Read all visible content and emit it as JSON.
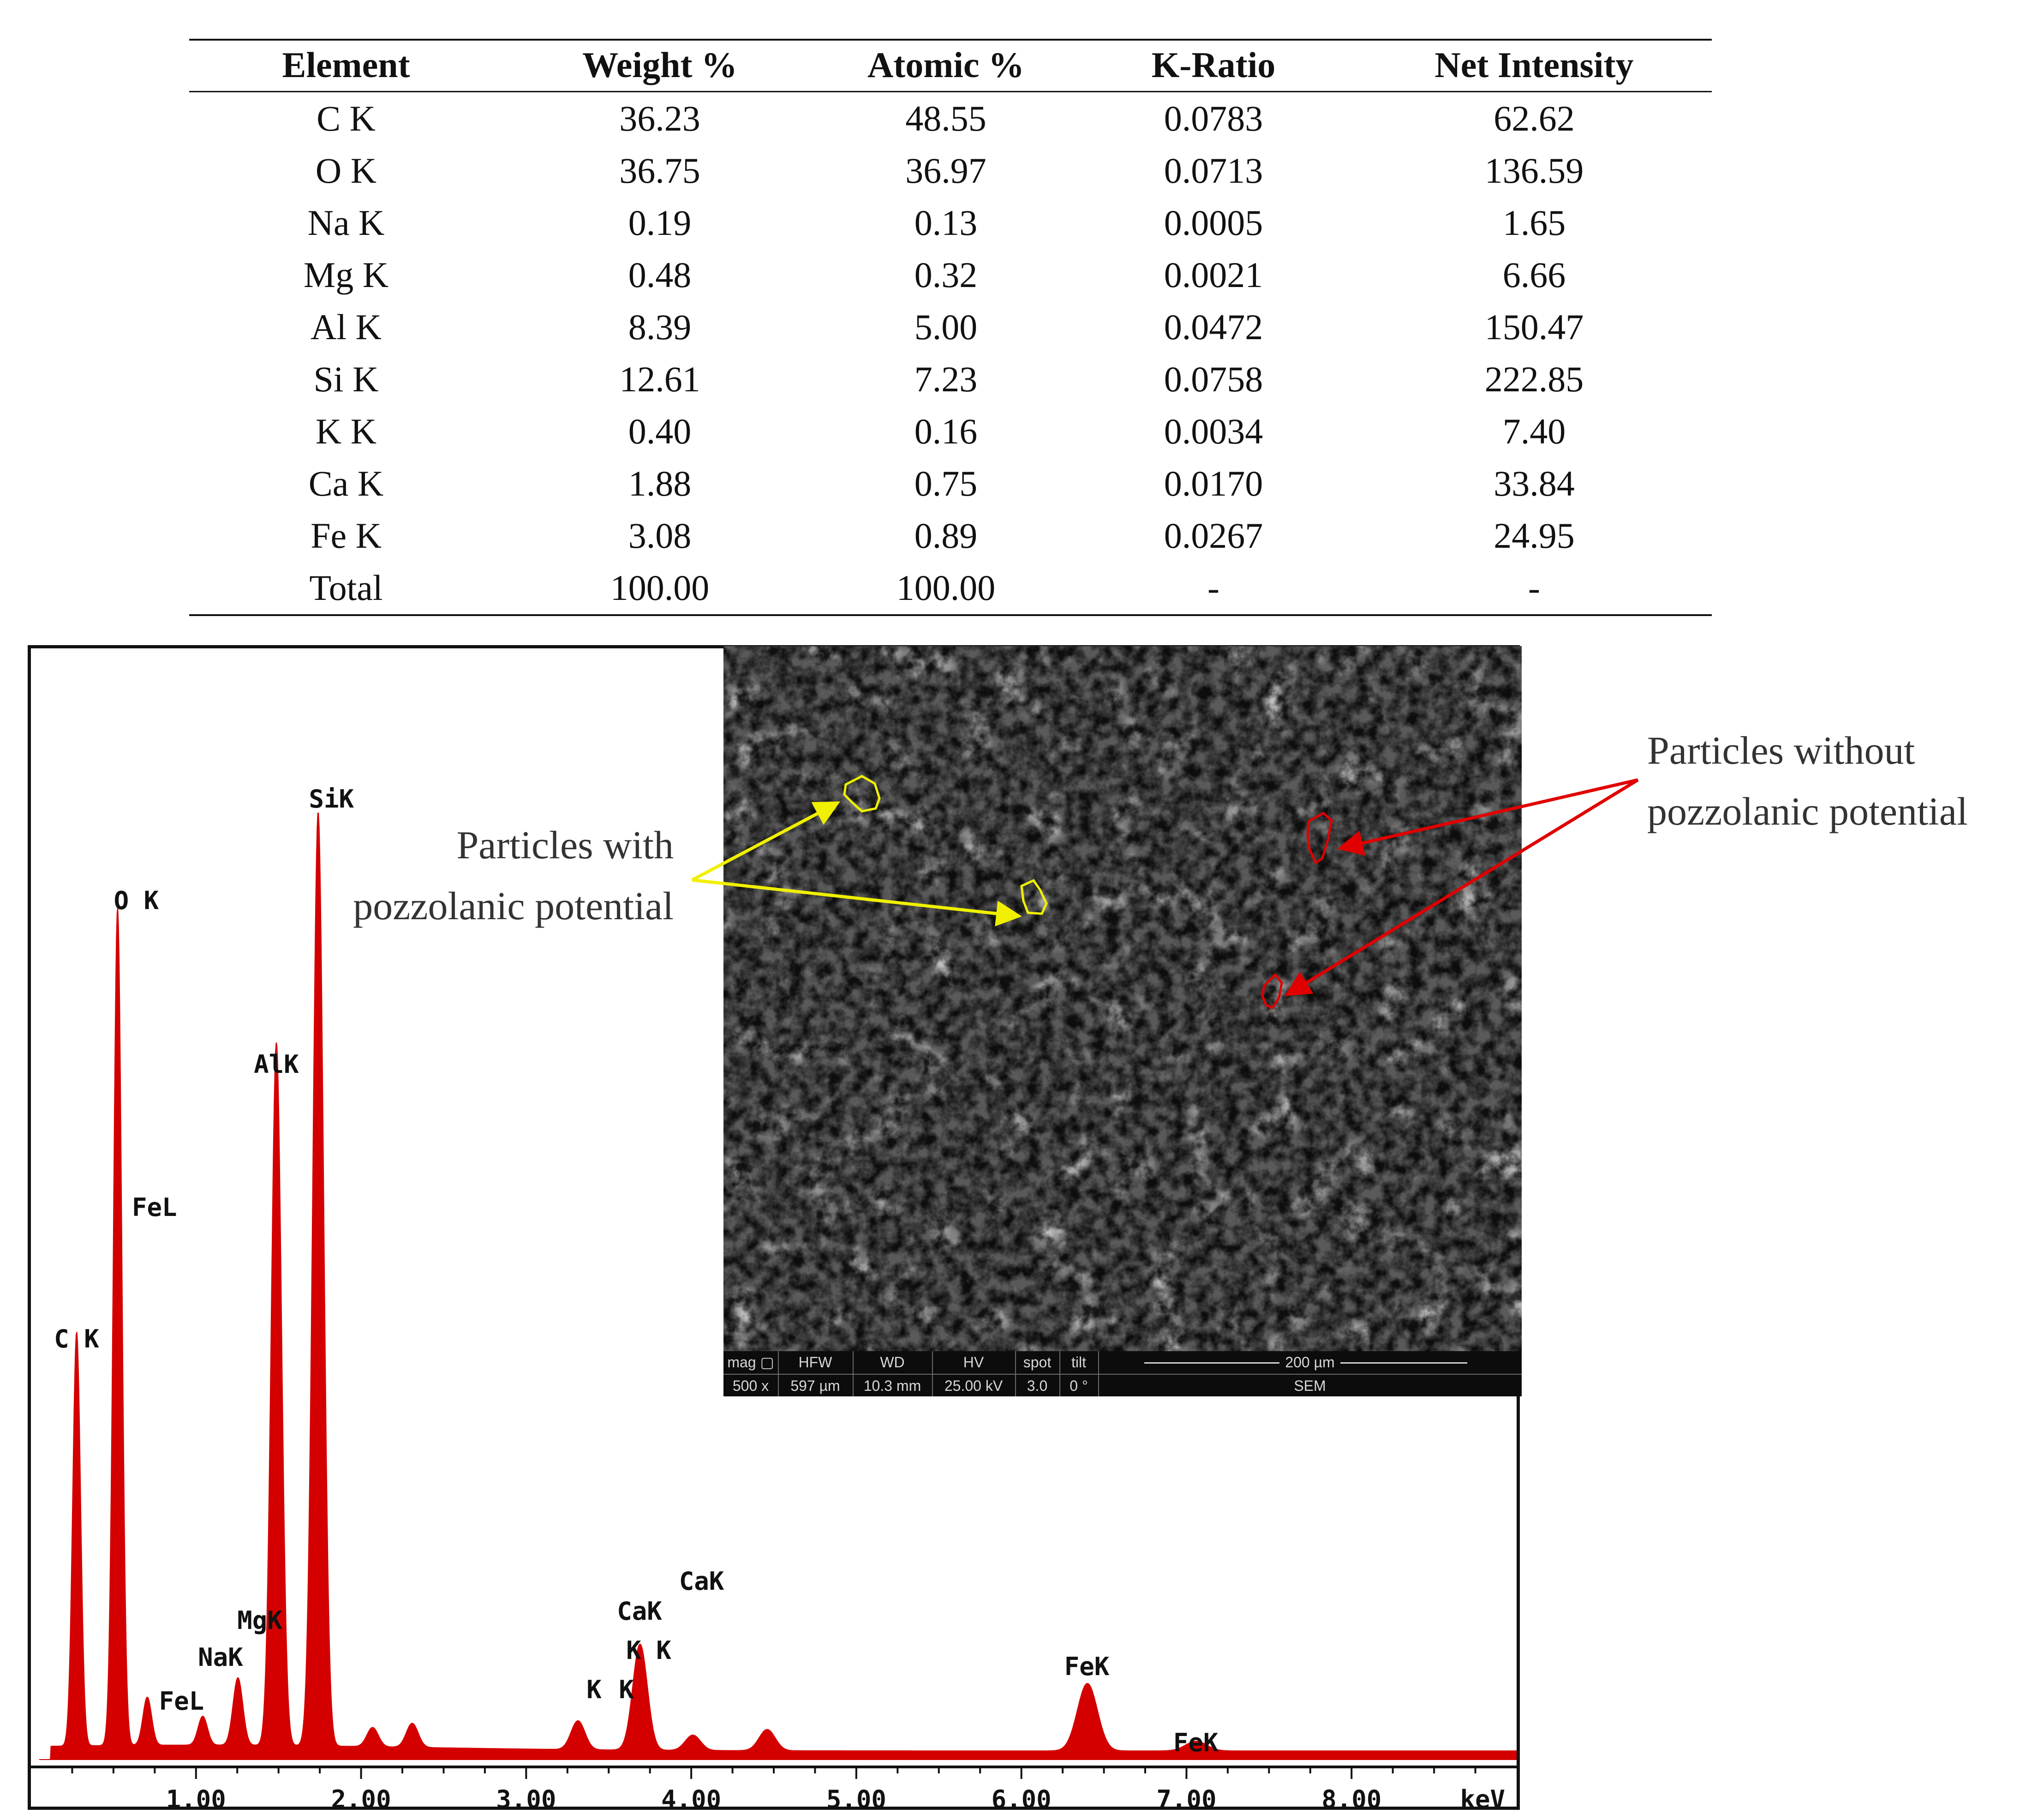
{
  "table": {
    "headers": [
      "Element",
      "Weight %",
      "Atomic %",
      "K-Ratio",
      "Net Intensity"
    ],
    "rows": [
      [
        "C K",
        "36.23",
        "48.55",
        "0.0783",
        "62.62"
      ],
      [
        "O K",
        "36.75",
        "36.97",
        "0.0713",
        "136.59"
      ],
      [
        "Na K",
        "0.19",
        "0.13",
        "0.0005",
        "1.65"
      ],
      [
        "Mg K",
        "0.48",
        "0.32",
        "0.0021",
        "6.66"
      ],
      [
        "Al K",
        "8.39",
        "5.00",
        "0.0472",
        "150.47"
      ],
      [
        "Si K",
        "12.61",
        "7.23",
        "0.0758",
        "222.85"
      ],
      [
        "K K",
        "0.40",
        "0.16",
        "0.0034",
        "7.40"
      ],
      [
        "Ca K",
        "1.88",
        "0.75",
        "0.0170",
        "33.84"
      ],
      [
        "Fe K",
        "3.08",
        "0.89",
        "0.0267",
        "24.95"
      ],
      [
        "Total",
        "100.00",
        "100.00",
        "-",
        "-"
      ]
    ]
  },
  "chart_data": {
    "type": "line",
    "title": "",
    "xlabel": "keV",
    "ylabel": "",
    "xlim": [
      0,
      9.0
    ],
    "ylim": [
      0,
      100
    ],
    "x_ticks": [
      "1.00",
      "2.00",
      "3.00",
      "4.00",
      "5.00",
      "6.00",
      "7.00",
      "8.00"
    ],
    "x_tick_values": [
      1,
      2,
      3,
      4,
      5,
      6,
      7,
      8
    ],
    "series": [
      {
        "peaks": [
          {
            "label": "C K",
            "energy": 0.277,
            "height": 43
          },
          {
            "label": "O K",
            "energy": 0.525,
            "height": 87
          },
          {
            "label": "FeL",
            "energy": 0.705,
            "height": 5
          },
          {
            "label": "NaK",
            "energy": 1.041,
            "height": 3
          },
          {
            "label": "MgK",
            "energy": 1.254,
            "height": 7
          },
          {
            "label": "AlK",
            "energy": 1.487,
            "height": 73
          },
          {
            "label": "SiK",
            "energy": 1.74,
            "height": 97
          },
          {
            "label": "K",
            "energy": 3.314,
            "height": 3
          },
          {
            "label": "CaK",
            "energy": 3.69,
            "height": 11
          },
          {
            "label": "FeK",
            "energy": 6.4,
            "height": 7
          },
          {
            "label": "FeK",
            "energy": 7.059,
            "height": 1
          }
        ],
        "minor_peaks": [
          {
            "energy": 2.07,
            "height": 2
          },
          {
            "energy": 2.31,
            "height": 2.5
          },
          {
            "energy": 4.01,
            "height": 1.6
          },
          {
            "energy": 4.46,
            "height": 2.2
          }
        ]
      }
    ],
    "peak_labels": [
      {
        "text": "C K",
        "energy": 0.28
      },
      {
        "text": "O K",
        "energy": 0.53
      },
      {
        "text": "FeL",
        "energy": 0.64
      },
      {
        "text": "FeL",
        "energy": 0.72
      },
      {
        "text": "NaK",
        "energy": 1.04
      },
      {
        "text": "MgK",
        "energy": 1.25
      },
      {
        "text": "AlK",
        "energy": 1.49
      },
      {
        "text": "SiK",
        "energy": 1.74
      },
      {
        "text": "K",
        "energy": 3.31
      },
      {
        "text": "K",
        "energy": 3.59
      },
      {
        "text": "K K",
        "energy": 3.69
      },
      {
        "text": "CaK",
        "energy": 3.69
      },
      {
        "text": "CaK",
        "energy": 4.01
      },
      {
        "text": "FeK",
        "energy": 6.4
      },
      {
        "text": "FeK",
        "energy": 7.06
      }
    ],
    "colors": {
      "spectrum": "#d40000",
      "axis": "#111111"
    }
  },
  "sem": {
    "databar_headers": [
      "mag ▢",
      "HFW",
      "WD",
      "HV",
      "spot",
      "tilt"
    ],
    "databar_values": [
      "500 x",
      "597 µm",
      "10.3 mm",
      "25.00 kV",
      "3.0",
      "0 °"
    ],
    "scale_label": "200 µm",
    "detector": "SEM"
  },
  "annotations": {
    "with": [
      "Particles with",
      "pozzolanic potential"
    ],
    "without": [
      "Particles without",
      "pozzolanic potential"
    ],
    "with_color": "#f0f000",
    "without_color": "#e00000"
  }
}
